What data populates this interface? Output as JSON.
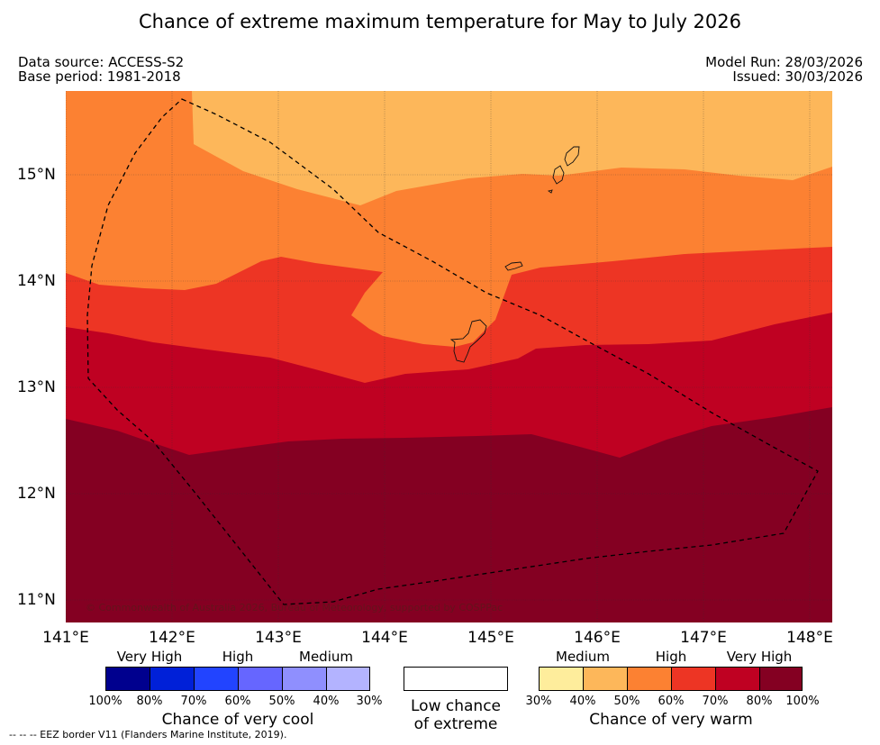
{
  "title": "Chance of extreme maximum temperature for May to July 2026",
  "data_source": "Data source: ACCESS-S2",
  "base_period": "Base period: 1981-2018",
  "model_run": "Model Run: 28/03/2026",
  "issued": "Issued: 30/03/2026",
  "copyright": "© Commonwealth of Australia 2026, Bureau of Meteorology, supported by COSPPac",
  "latitude_labels": [
    "15°N",
    "14°N",
    "13°N",
    "12°N",
    "11°N"
  ],
  "longitude_labels": [
    "141°E",
    "142°E",
    "143°E",
    "144°E",
    "145°E",
    "146°E",
    "147°E",
    "148°E"
  ],
  "colors": {
    "medium_warm": "#fdb75a",
    "high_warm_50": "#fc8132",
    "high_warm_60": "#ed3524",
    "very_high_70": "#bf0122",
    "very_high_80": "#840022",
    "cool_100": "#00008e",
    "cool_80": "#0020d8",
    "cool_70": "#2244ff",
    "cool_60": "#6666ff",
    "cool_50": "#8f8ffe",
    "cool_40": "#b3b3ff",
    "warm_30": "#feed9c",
    "warm_40": "#fdb75a",
    "warm_50": "#fc8132",
    "warm_60": "#ed3524",
    "warm_70": "#bf0122",
    "warm_80": "#840022"
  },
  "legend": {
    "cool": {
      "categories": [
        "Very High",
        "High",
        "Medium"
      ],
      "ticks": [
        "100%",
        "80%",
        "70%",
        "60%",
        "50%",
        "40%",
        "30%"
      ],
      "title": "Chance of very cool"
    },
    "neutral": {
      "line1": "Low chance",
      "line2": "of extreme"
    },
    "warm": {
      "categories": [
        "Medium",
        "High",
        "Very High"
      ],
      "ticks": [
        "30%",
        "40%",
        "50%",
        "60%",
        "70%",
        "80%",
        "100%"
      ],
      "title": "Chance of very warm"
    }
  },
  "eez_note": "--  --  -- EEZ border V11 (Flanders Marine Institute, 2019)."
}
